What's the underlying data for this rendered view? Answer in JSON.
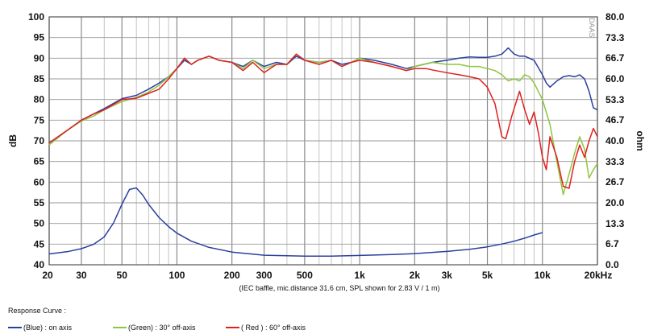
{
  "chart_data": {
    "type": "line",
    "x_scale": "log",
    "xlim": [
      20,
      20000
    ],
    "ylim_left": [
      40,
      100
    ],
    "ylim_right": [
      0.0,
      80.0
    ],
    "ylabel_left": "dB",
    "ylabel_right": "ohm",
    "grid": true,
    "x_tick_values": [
      20,
      30,
      50,
      100,
      200,
      300,
      500,
      1000,
      2000,
      3000,
      5000,
      10000,
      20000
    ],
    "x_tick_labels": [
      "20",
      "30",
      "50",
      "100",
      "200",
      "300",
      "500",
      "1k",
      "2k",
      "3k",
      "5k",
      "10k",
      "20kHz"
    ],
    "y_left_ticks": [
      "100",
      "95",
      "90",
      "85",
      "80",
      "75",
      "70",
      "65",
      "60",
      "55",
      "50",
      "45",
      "40"
    ],
    "y_right_ticks": [
      "80.0",
      "73.3",
      "66.7",
      "60.0",
      "53.3",
      "46.7",
      "40.0",
      "33.3",
      "26.7",
      "20.0",
      "13.3",
      "6.7",
      "0.0"
    ],
    "caption": "(IEC baffle, mic.distance 31.6 cm, SPL shown for 2.83 V / 1 m)",
    "watermark": "DAAS",
    "series": [
      {
        "key": "blue",
        "color": "#2b3fa0",
        "x": [
          20,
          25,
          30,
          35,
          40,
          50,
          60,
          70,
          80,
          90,
          100,
          110,
          120,
          130,
          150,
          170,
          200,
          230,
          260,
          300,
          350,
          400,
          450,
          500,
          600,
          700,
          800,
          900,
          1000,
          1200,
          1500,
          1800,
          2000,
          2500,
          3000,
          3500,
          4000,
          4500,
          5000,
          5500,
          6000,
          6500,
          7000,
          7500,
          8000,
          9000,
          10000,
          10500,
          11000,
          12000,
          13000,
          14000,
          15000,
          16000,
          17000,
          18000,
          19000,
          20000
        ],
        "y": [
          69.5,
          72.5,
          75,
          76.5,
          77.8,
          80.2,
          81,
          82.5,
          84,
          85.5,
          87.5,
          89.5,
          88.5,
          89.5,
          90.5,
          89.5,
          89,
          88,
          89.5,
          88,
          89,
          88.5,
          90.5,
          89.5,
          89,
          89.5,
          88.5,
          89,
          90,
          89.5,
          88.5,
          87.5,
          88,
          89,
          89.5,
          90,
          90.3,
          90.2,
          90.2,
          90.5,
          91,
          92.5,
          91,
          90.5,
          90.5,
          89.5,
          86,
          84,
          83,
          84.5,
          85.5,
          85.8,
          85.5,
          86,
          85,
          82,
          78,
          77.5
        ]
      },
      {
        "key": "green",
        "color": "#8ec63f",
        "x": [
          20,
          25,
          30,
          35,
          40,
          50,
          60,
          70,
          80,
          90,
          100,
          110,
          120,
          130,
          150,
          170,
          200,
          230,
          260,
          300,
          350,
          400,
          450,
          500,
          600,
          700,
          800,
          900,
          1000,
          1200,
          1500,
          1800,
          2000,
          2500,
          3000,
          3500,
          4000,
          4500,
          5000,
          5500,
          6000,
          6500,
          7000,
          7500,
          8000,
          8500,
          9000,
          10000,
          11000,
          12000,
          13000,
          14000,
          15000,
          16000,
          17000,
          18000,
          19000,
          20000
        ],
        "y": [
          69,
          72.5,
          74.8,
          76,
          77.5,
          79.5,
          80.5,
          81.8,
          83.5,
          85.5,
          87.5,
          90,
          88.5,
          89.5,
          90.5,
          89.5,
          89,
          87.5,
          89.5,
          87.5,
          88.5,
          88.5,
          91,
          89.5,
          89,
          89.5,
          88,
          89,
          90,
          89,
          88,
          87,
          88,
          89,
          88.5,
          88.5,
          88,
          88,
          87.5,
          87,
          86,
          84.5,
          85,
          84.5,
          86,
          85.5,
          84,
          80,
          74,
          65,
          57,
          62,
          67,
          71,
          68,
          61,
          63,
          64.5
        ]
      },
      {
        "key": "red",
        "color": "#e02020",
        "x": [
          20,
          25,
          30,
          35,
          40,
          50,
          60,
          70,
          80,
          90,
          100,
          110,
          120,
          130,
          150,
          170,
          200,
          230,
          260,
          300,
          350,
          400,
          450,
          500,
          600,
          700,
          800,
          900,
          1000,
          1200,
          1500,
          1800,
          2000,
          2300,
          2600,
          3000,
          3500,
          4000,
          4500,
          5000,
          5500,
          6000,
          6300,
          6800,
          7500,
          8000,
          8500,
          9000,
          9500,
          10000,
          10500,
          11000,
          12000,
          13000,
          14000,
          15000,
          16000,
          17000,
          18000,
          19000,
          20000
        ],
        "y": [
          69.5,
          72.5,
          75,
          76.5,
          77.5,
          80,
          80.3,
          81.5,
          82.5,
          85,
          87.5,
          90,
          88.5,
          89.5,
          90.5,
          89.5,
          89,
          87,
          89,
          86.5,
          88.5,
          88.5,
          91,
          89.5,
          88.5,
          89.5,
          88,
          89,
          89.5,
          89,
          88,
          87,
          87.5,
          87.5,
          87,
          86.5,
          86,
          85.5,
          85,
          83,
          79,
          71,
          70.5,
          76,
          82,
          77.5,
          74,
          77,
          72,
          66,
          63,
          71,
          66,
          59,
          58.5,
          65,
          69,
          66,
          70,
          73,
          71
        ]
      },
      {
        "key": "impedance",
        "color": "#2b3fa0",
        "axis": "right",
        "x": [
          20,
          25,
          30,
          35,
          40,
          45,
          50,
          55,
          60,
          65,
          70,
          80,
          90,
          100,
          120,
          150,
          200,
          300,
          500,
          700,
          1000,
          1500,
          2000,
          3000,
          4000,
          5000,
          6000,
          7000,
          8000,
          9000,
          10000
        ],
        "y": [
          3.5,
          4.2,
          5.2,
          6.6,
          9.0,
          13.5,
          19.5,
          24.3,
          24.8,
          22.5,
          19.5,
          15.2,
          12.3,
          10.2,
          7.6,
          5.6,
          4.1,
          3.1,
          2.8,
          2.8,
          3.0,
          3.3,
          3.6,
          4.3,
          5.0,
          5.8,
          6.7,
          7.6,
          8.6,
          9.6,
          10.4
        ]
      }
    ]
  },
  "legend": {
    "title": "Response Curve :",
    "items": [
      {
        "label": "(Blue) : on axis",
        "color": "#2b3fa0"
      },
      {
        "label": "(Green) : 30° off-axis",
        "color": "#8ec63f"
      },
      {
        "label": "( Red ) : 60° off-axis",
        "color": "#e02020"
      }
    ]
  }
}
